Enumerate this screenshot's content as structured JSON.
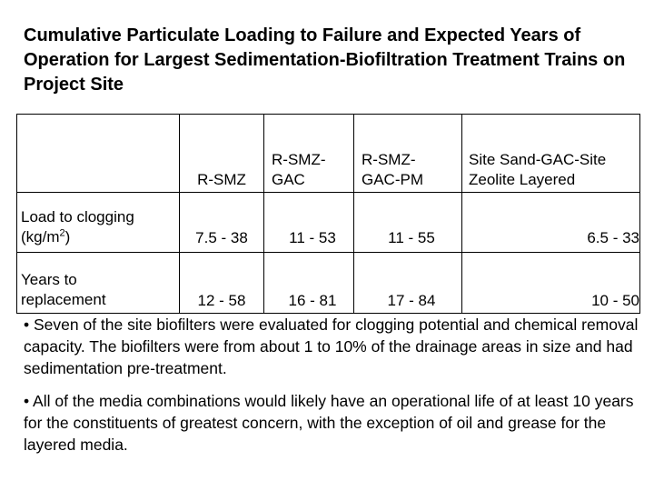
{
  "title": "Cumulative Particulate Loading to Failure and Expected Years of Operation for Largest Sedimentation-Biofiltration Treatment Trains on Project Site",
  "table": {
    "headers": [
      "",
      "R-SMZ",
      "R-SMZ-GAC",
      "R-SMZ-GAC-PM",
      "Site Sand-GAC-Site Zeolite Layered"
    ],
    "rows": [
      {
        "label_main": "Load to clogging",
        "label_unit_pre": "(kg/m",
        "label_unit_sup": "2",
        "label_unit_post": ")",
        "values": [
          "7.5 - 38",
          "11 - 53",
          "11 - 55",
          "6.5 - 33"
        ]
      },
      {
        "label_main": "Years to",
        "label_second": "replacement",
        "values": [
          "12 - 58",
          "16 - 81",
          "17 - 84",
          "10 - 50"
        ]
      }
    ]
  },
  "bullets": [
    "• Seven of the site biofilters were evaluated for clogging potential and chemical removal capacity. The biofilters were from about 1 to 10% of the drainage areas in size and had sedimentation pre-treatment.",
    "• All of the media combinations would likely have an operational life of at least 10 years for the constituents of greatest concern, with the exception of oil and grease for the layered media."
  ]
}
